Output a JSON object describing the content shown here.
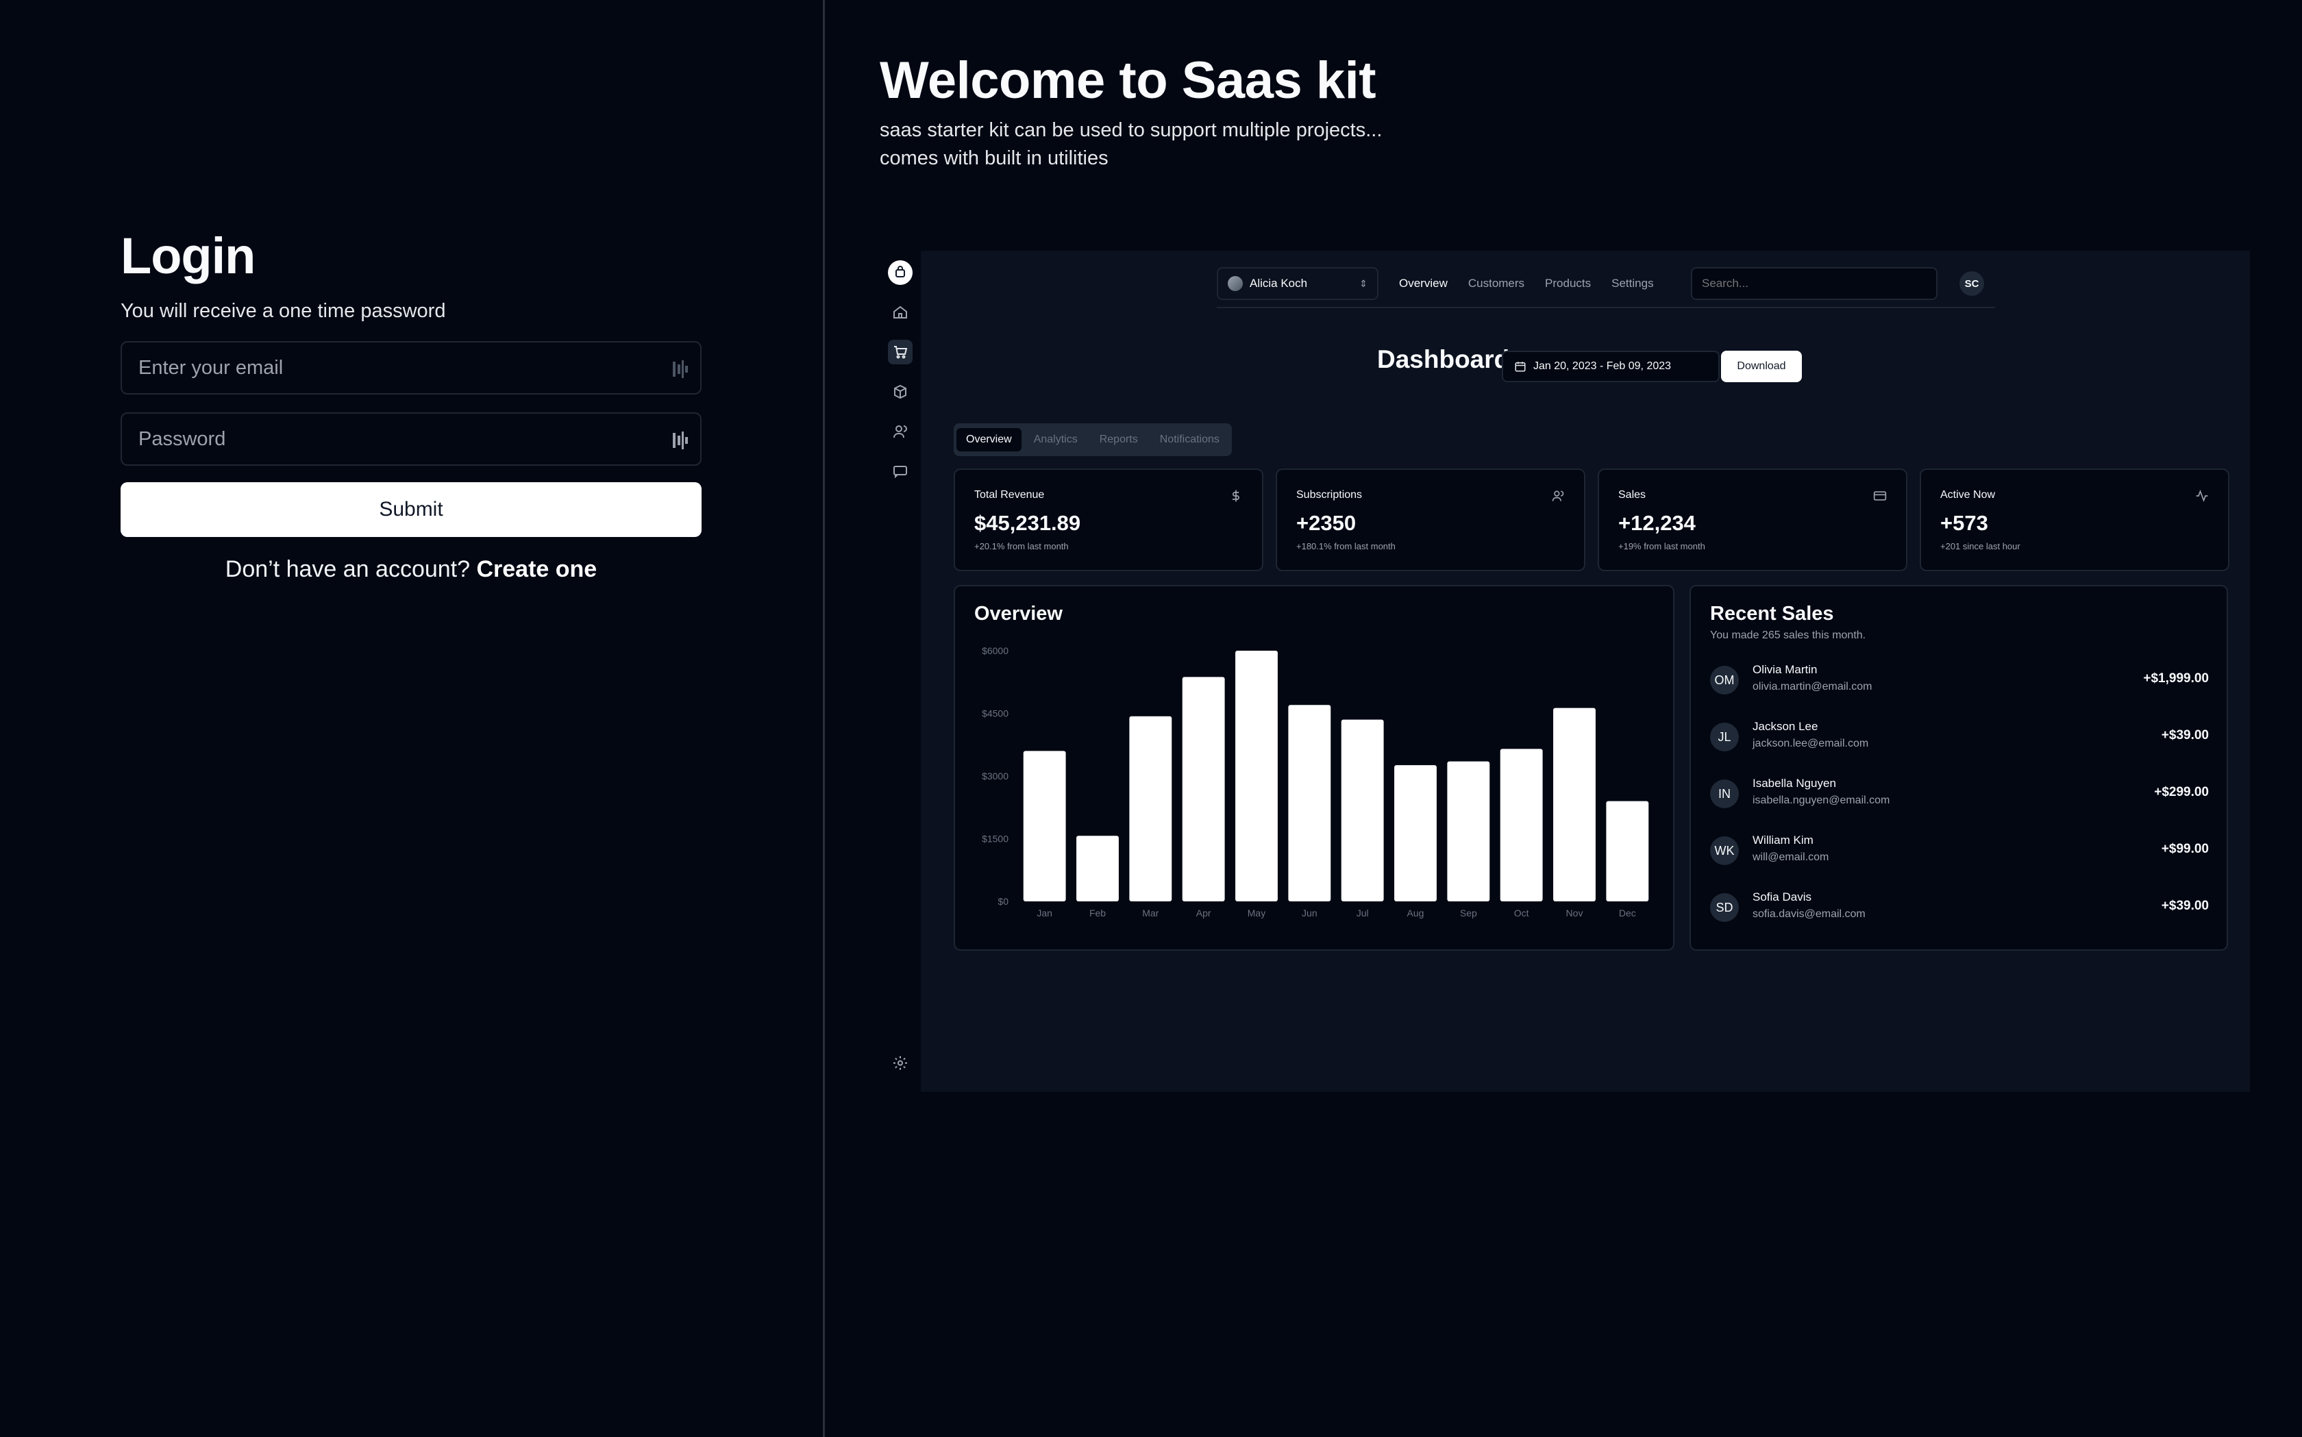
{
  "login": {
    "title": "Login",
    "subtitle": "You will receive a one time password",
    "email_placeholder": "Enter your email",
    "password_placeholder": "Password",
    "submit_label": "Submit",
    "signup_prompt": "Don’t have an account?",
    "signup_link": "Create one"
  },
  "welcome": {
    "title": "Welcome to Saas kit",
    "line1": "saas starter kit can be used to support multiple projects...",
    "line2": "comes with built in utilities"
  },
  "rail": {
    "icons": [
      "logo-icon",
      "home-icon",
      "cart-icon",
      "package-icon",
      "users-icon",
      "message-icon",
      "gear-icon"
    ]
  },
  "dashboard": {
    "account_name": "Alicia Koch",
    "nav": [
      "Overview",
      "Customers",
      "Products",
      "Settings"
    ],
    "search_placeholder": "Search...",
    "user_initials": "SC",
    "title": "Dashboard",
    "date_range": "Jan 20, 2023 - Feb 09, 2023",
    "download_label": "Download",
    "tabs": [
      "Overview",
      "Analytics",
      "Reports",
      "Notifications"
    ],
    "cards": [
      {
        "title": "Total Revenue",
        "value": "$45,231.89",
        "sub": "+20.1% from last month",
        "icon": "dollar-icon"
      },
      {
        "title": "Subscriptions",
        "value": "+2350",
        "sub": "+180.1% from last month",
        "icon": "users-icon"
      },
      {
        "title": "Sales",
        "value": "+12,234",
        "sub": "+19% from last month",
        "icon": "credit-card-icon"
      },
      {
        "title": "Active Now",
        "value": "+573",
        "sub": "+201 since last hour",
        "icon": "activity-icon"
      }
    ],
    "overview_title": "Overview",
    "recent_sales": {
      "title": "Recent Sales",
      "subtitle": "You made 265 sales this month.",
      "items": [
        {
          "initials": "OM",
          "name": "Olivia Martin",
          "email": "olivia.martin@email.com",
          "amount": "+$1,999.00"
        },
        {
          "initials": "JL",
          "name": "Jackson Lee",
          "email": "jackson.lee@email.com",
          "amount": "+$39.00"
        },
        {
          "initials": "IN",
          "name": "Isabella Nguyen",
          "email": "isabella.nguyen@email.com",
          "amount": "+$299.00"
        },
        {
          "initials": "WK",
          "name": "William Kim",
          "email": "will@email.com",
          "amount": "+$99.00"
        },
        {
          "initials": "SD",
          "name": "Sofia Davis",
          "email": "sofia.davis@email.com",
          "amount": "+$39.00"
        }
      ]
    }
  },
  "chart_data": {
    "type": "bar",
    "title": "Overview",
    "categories": [
      "Jan",
      "Feb",
      "Mar",
      "Apr",
      "May",
      "Jun",
      "Jul",
      "Aug",
      "Sep",
      "Oct",
      "Nov",
      "Dec"
    ],
    "values": [
      3600,
      1570,
      4430,
      5370,
      6000,
      4700,
      4350,
      3260,
      3350,
      3650,
      4630,
      2400
    ],
    "ytick_labels": [
      "$0",
      "$1500",
      "$3000",
      "$4500",
      "$6000"
    ],
    "yticks": [
      0,
      1500,
      3000,
      4500,
      6000
    ],
    "ylim": [
      0,
      6000
    ],
    "bar_color": "#ffffff",
    "grid": false
  }
}
